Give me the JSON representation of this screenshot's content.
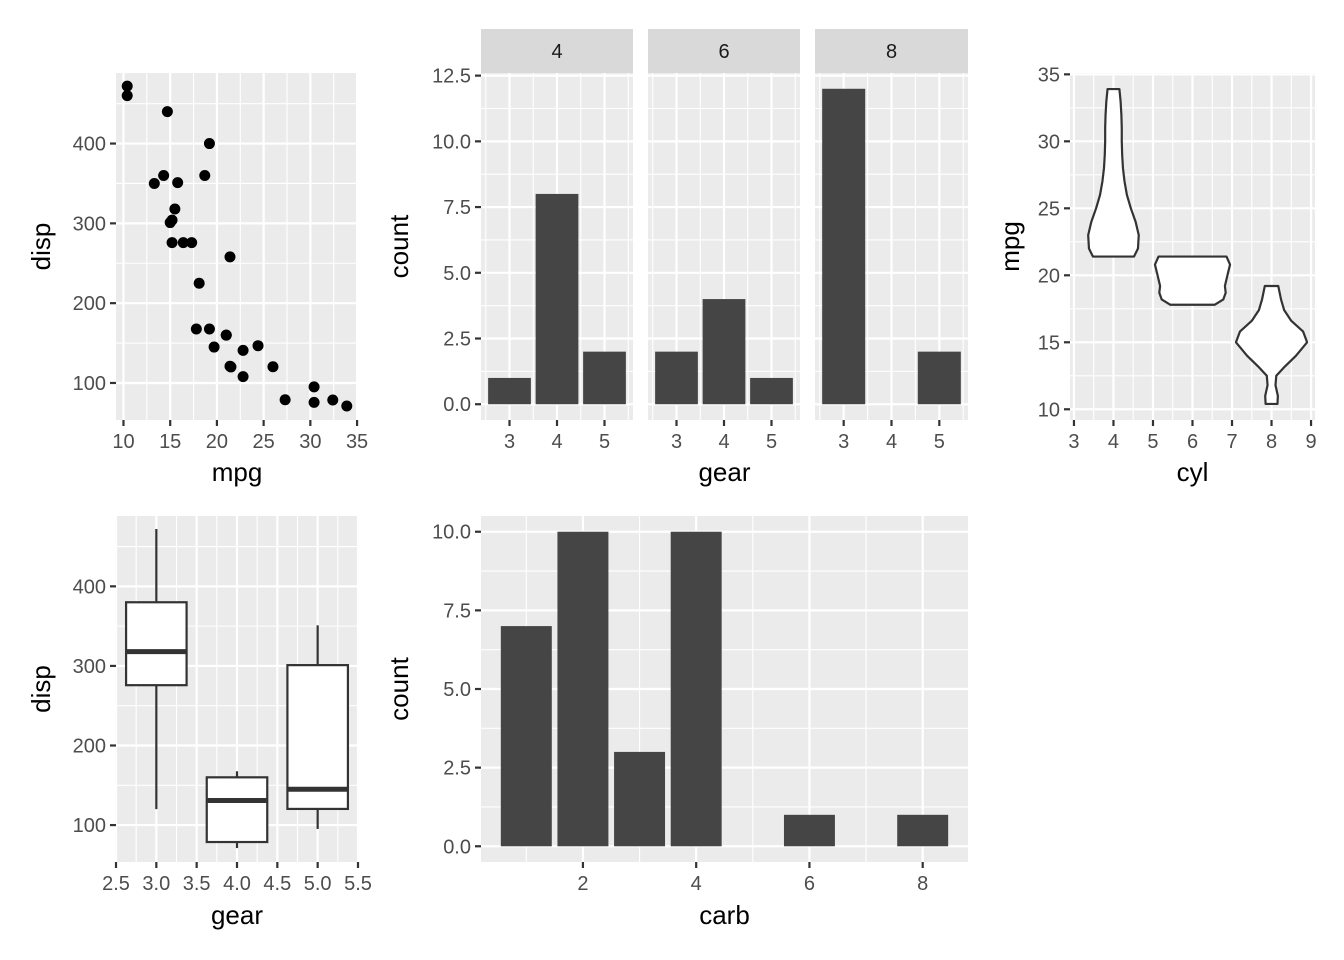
{
  "chart_data": [
    {
      "id": "p1",
      "type": "scatter",
      "xlabel": "mpg",
      "ylabel": "disp",
      "xlim": [
        9.2,
        35.1
      ],
      "ylim": [
        53.6,
        488.4
      ],
      "xticks": [
        10,
        15,
        20,
        25,
        30,
        35
      ],
      "yticks": [
        100,
        200,
        300,
        400
      ],
      "points": [
        {
          "x": 21.0,
          "y": 160
        },
        {
          "x": 21.0,
          "y": 160
        },
        {
          "x": 22.8,
          "y": 108
        },
        {
          "x": 21.4,
          "y": 258
        },
        {
          "x": 18.7,
          "y": 360
        },
        {
          "x": 18.1,
          "y": 225
        },
        {
          "x": 14.3,
          "y": 360
        },
        {
          "x": 24.4,
          "y": 146.7
        },
        {
          "x": 22.8,
          "y": 140.8
        },
        {
          "x": 19.2,
          "y": 167.6
        },
        {
          "x": 17.8,
          "y": 167.6
        },
        {
          "x": 16.4,
          "y": 275.8
        },
        {
          "x": 17.3,
          "y": 275.8
        },
        {
          "x": 15.2,
          "y": 275.8
        },
        {
          "x": 10.4,
          "y": 472
        },
        {
          "x": 10.4,
          "y": 460
        },
        {
          "x": 14.7,
          "y": 440
        },
        {
          "x": 32.4,
          "y": 78.7
        },
        {
          "x": 30.4,
          "y": 75.7
        },
        {
          "x": 33.9,
          "y": 71.1
        },
        {
          "x": 21.5,
          "y": 120.1
        },
        {
          "x": 15.5,
          "y": 318
        },
        {
          "x": 15.2,
          "y": 304
        },
        {
          "x": 13.3,
          "y": 350
        },
        {
          "x": 19.2,
          "y": 400
        },
        {
          "x": 27.3,
          "y": 79
        },
        {
          "x": 26.0,
          "y": 120.3
        },
        {
          "x": 30.4,
          "y": 95.1
        },
        {
          "x": 15.8,
          "y": 351
        },
        {
          "x": 19.7,
          "y": 145
        },
        {
          "x": 15.0,
          "y": 301
        },
        {
          "x": 21.4,
          "y": 121
        }
      ]
    },
    {
      "id": "p2",
      "type": "bar",
      "facet_var": "cyl",
      "xlabel": "gear",
      "ylabel": "count",
      "ylim": [
        -0.6,
        12.6
      ],
      "yticks": [
        0.0,
        2.5,
        5.0,
        7.5,
        10.0,
        12.5
      ],
      "ytick_labels": [
        "0.0",
        "2.5",
        "5.0",
        "7.5",
        "10.0",
        "12.5"
      ],
      "xlim": [
        2.4,
        5.6
      ],
      "xticks": [
        3,
        4,
        5
      ],
      "facets": [
        {
          "label": "4",
          "categories": [
            3,
            4,
            5
          ],
          "values": [
            1,
            8,
            2
          ]
        },
        {
          "label": "6",
          "categories": [
            3,
            4,
            5
          ],
          "values": [
            2,
            4,
            1
          ]
        },
        {
          "label": "8",
          "categories": [
            3,
            4,
            5
          ],
          "values": [
            12,
            0,
            2
          ]
        }
      ]
    },
    {
      "id": "p3",
      "type": "violin",
      "xlabel": "cyl",
      "ylabel": "mpg",
      "xlim": [
        2.9,
        9.1
      ],
      "ylim": [
        9.2,
        35.1
      ],
      "xticks": [
        3,
        4,
        5,
        6,
        7,
        8,
        9
      ],
      "yticks": [
        10,
        15,
        20,
        25,
        30,
        35
      ],
      "groups": [
        {
          "x": 4,
          "ymin": 21.4,
          "ymax": 33.9,
          "profile": [
            [
              21.4,
              0.52
            ],
            [
              22.0,
              0.62
            ],
            [
              23.0,
              0.64
            ],
            [
              24.0,
              0.56
            ],
            [
              25.0,
              0.44
            ],
            [
              26.0,
              0.34
            ],
            [
              27.0,
              0.28
            ],
            [
              28.0,
              0.24
            ],
            [
              29.0,
              0.22
            ],
            [
              30.0,
              0.21
            ],
            [
              31.0,
              0.21
            ],
            [
              32.0,
              0.2
            ],
            [
              33.0,
              0.18
            ],
            [
              33.9,
              0.15
            ]
          ]
        },
        {
          "x": 6,
          "ymin": 17.8,
          "ymax": 21.4,
          "profile": [
            [
              17.8,
              0.56
            ],
            [
              18.2,
              0.78
            ],
            [
              18.7,
              0.84
            ],
            [
              19.2,
              0.82
            ],
            [
              19.7,
              0.86
            ],
            [
              20.2,
              0.9
            ],
            [
              20.8,
              0.95
            ],
            [
              21.4,
              0.86
            ]
          ]
        },
        {
          "x": 8,
          "ymin": 10.4,
          "ymax": 19.2,
          "profile": [
            [
              10.4,
              0.15
            ],
            [
              11.0,
              0.16
            ],
            [
              11.8,
              0.1
            ],
            [
              12.5,
              0.12
            ],
            [
              13.2,
              0.34
            ],
            [
              14.0,
              0.62
            ],
            [
              15.0,
              0.9
            ],
            [
              15.8,
              0.8
            ],
            [
              16.6,
              0.5
            ],
            [
              17.4,
              0.32
            ],
            [
              18.2,
              0.24
            ],
            [
              19.2,
              0.17
            ]
          ]
        }
      ]
    },
    {
      "id": "p4",
      "type": "box",
      "xlabel": "gear",
      "ylabel": "disp",
      "xlim": [
        2.5,
        5.5
      ],
      "ylim": [
        53.6,
        488.4
      ],
      "xticks": [
        2.5,
        3.0,
        3.5,
        4.0,
        4.5,
        5.0,
        5.5
      ],
      "xtick_labels": [
        "2.5",
        "3.0",
        "3.5",
        "4.0",
        "4.5",
        "5.0",
        "5.5"
      ],
      "yticks": [
        100,
        200,
        300,
        400
      ],
      "boxes": [
        {
          "x": 3,
          "lower": 120.1,
          "q1": 275.8,
          "median": 318,
          "q3": 380,
          "upper": 472
        },
        {
          "x": 4,
          "lower": 71.1,
          "q1": 78.7,
          "median": 130.9,
          "q3": 160,
          "upper": 167.6
        },
        {
          "x": 5,
          "lower": 95.1,
          "q1": 120.3,
          "median": 145,
          "q3": 301,
          "upper": 351
        }
      ]
    },
    {
      "id": "p5",
      "type": "bar",
      "xlabel": "carb",
      "ylabel": "count",
      "xlim": [
        0.2,
        8.8
      ],
      "ylim": [
        -0.5,
        10.5
      ],
      "xticks": [
        2,
        4,
        6,
        8
      ],
      "yticks": [
        0.0,
        2.5,
        5.0,
        7.5,
        10.0
      ],
      "ytick_labels": [
        "0.0",
        "2.5",
        "5.0",
        "7.5",
        "10.0"
      ],
      "categories": [
        1,
        2,
        3,
        4,
        6,
        8
      ],
      "values": [
        7,
        10,
        3,
        10,
        1,
        1
      ]
    }
  ]
}
